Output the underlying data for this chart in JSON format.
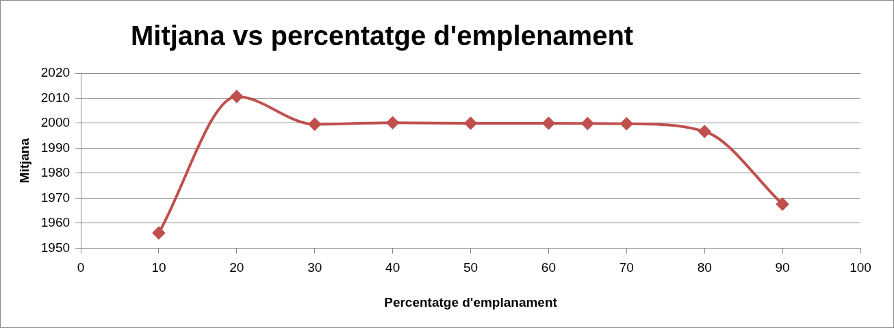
{
  "chart_data": {
    "type": "line",
    "title": "Mitjana vs percentatge d'emplenament",
    "xlabel": "Percentatge d'emplanament",
    "ylabel": "Mitjana",
    "x": [
      10,
      20,
      30,
      40,
      50,
      60,
      65,
      70,
      80,
      90
    ],
    "series": [
      {
        "color": "#c0504d",
        "values": [
          1956.1,
          2010.7,
          1999.6,
          2000.2,
          2000,
          2000,
          1999.9,
          1999.8,
          1996.7,
          1967.6
        ]
      }
    ],
    "xlim": [
      0,
      100
    ],
    "xticks": [
      0,
      10,
      20,
      30,
      40,
      50,
      60,
      70,
      80,
      90,
      100
    ],
    "ylim": [
      1950,
      2020
    ],
    "yticks": [
      1950,
      1960,
      1970,
      1980,
      1990,
      2000,
      2010,
      2020
    ],
    "grid": "y",
    "legend": false,
    "marker": "diamond",
    "line_style": "solid"
  }
}
